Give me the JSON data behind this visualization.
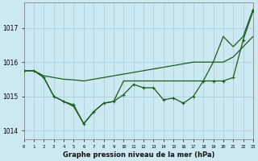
{
  "xlabel": "Graphe pression niveau de la mer (hPa)",
  "background_color": "#cce8f0",
  "grid_color": "#aacfdc",
  "line_color": "#1a5c1a",
  "hours": [
    0,
    1,
    2,
    3,
    4,
    5,
    6,
    7,
    8,
    9,
    10,
    11,
    12,
    13,
    14,
    15,
    16,
    17,
    18,
    19,
    20,
    21,
    22,
    23
  ],
  "series1": [
    1015.75,
    1015.75,
    1015.6,
    1015.55,
    1015.5,
    1015.48,
    1015.45,
    1015.5,
    1015.55,
    1015.6,
    1015.65,
    1015.7,
    1015.75,
    1015.8,
    1015.85,
    1015.9,
    1015.95,
    1016.0,
    1016.0,
    1016.0,
    1016.0,
    1016.15,
    1016.45,
    1016.75
  ],
  "series2": [
    1015.75,
    1015.75,
    1015.55,
    1015.0,
    1014.85,
    1014.75,
    1014.2,
    1014.55,
    1014.8,
    1014.85,
    1015.05,
    1015.35,
    1015.25,
    1015.25,
    1014.9,
    1014.95,
    1014.8,
    1015.0,
    1015.45,
    1015.45,
    1015.45,
    1015.55,
    1016.65,
    1017.5
  ],
  "series3": [
    1015.75,
    1015.75,
    1015.55,
    1015.0,
    1014.85,
    1014.7,
    1014.2,
    1014.55,
    1014.8,
    1014.85,
    1015.45,
    1015.45,
    1015.45,
    1015.45,
    1015.45,
    1015.45,
    1015.45,
    1015.45,
    1015.45,
    1016.0,
    1016.75,
    1016.45,
    1016.75,
    1017.55
  ],
  "ylim": [
    1013.75,
    1017.75
  ],
  "yticks": [
    1014,
    1015,
    1016,
    1017
  ],
  "xlim": [
    0,
    23
  ]
}
